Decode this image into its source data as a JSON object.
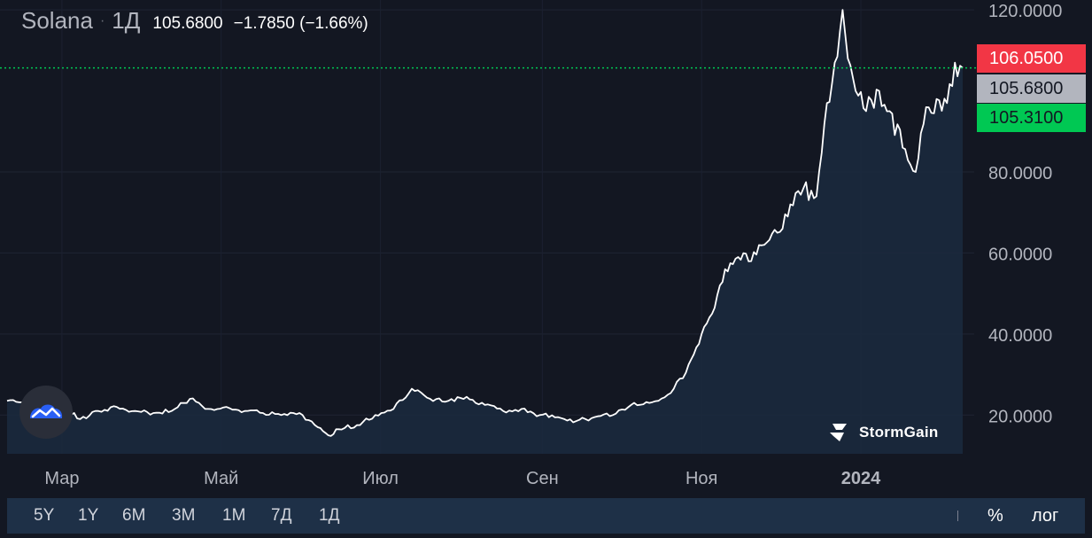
{
  "symbol": {
    "name": "Solana",
    "separator": "·",
    "interval": "1Д",
    "last_price": "105.6800",
    "change": "−1.7850 (−1.66%)"
  },
  "price_labels": {
    "ask": "106.0500",
    "last": "105.6800",
    "bid": "105.3100"
  },
  "brand": {
    "name": "StormGain"
  },
  "range_buttons": [
    "5Y",
    "1Y",
    "6M",
    "3M",
    "1M",
    "7Д",
    "1Д"
  ],
  "scale_buttons": {
    "percent": "%",
    "log": "лог"
  },
  "colors": {
    "background": "#131722",
    "line": "#ffffff",
    "area": "#1b2a3e",
    "ask": "#f23645",
    "bid": "#00c853",
    "last": "#b2b5be",
    "current_price_line": "#00c853",
    "bottom_bar": "#1e3047"
  },
  "chart_data": {
    "type": "area",
    "x_tick_labels": [
      "Мар",
      "Май",
      "Июл",
      "Сен",
      "Ноя",
      "2024"
    ],
    "y_tick_labels": [
      "20.0000",
      "40.0000",
      "60.0000",
      "80.0000",
      "120.0000"
    ],
    "ylim": [
      10,
      122
    ],
    "grid": true,
    "series": [
      {
        "x": [
          "2023-02-08",
          "2023-02-15",
          "2023-02-22",
          "2023-03-01",
          "2023-03-08",
          "2023-03-15",
          "2023-03-22",
          "2023-03-29",
          "2023-04-05",
          "2023-04-12",
          "2023-04-19",
          "2023-04-26",
          "2023-05-03",
          "2023-05-10",
          "2023-05-17",
          "2023-05-24",
          "2023-05-31",
          "2023-06-07",
          "2023-06-11",
          "2023-06-15",
          "2023-06-22",
          "2023-06-29",
          "2023-07-06",
          "2023-07-13",
          "2023-07-20",
          "2023-07-27",
          "2023-08-03",
          "2023-08-10",
          "2023-08-17",
          "2023-08-24",
          "2023-08-31",
          "2023-09-07",
          "2023-09-14",
          "2023-09-21",
          "2023-09-28",
          "2023-10-05",
          "2023-10-12",
          "2023-10-19",
          "2023-10-26",
          "2023-11-01",
          "2023-11-05",
          "2023-11-10",
          "2023-11-15",
          "2023-11-20",
          "2023-11-25",
          "2023-11-30",
          "2023-12-05",
          "2023-12-10",
          "2023-12-15",
          "2023-12-19",
          "2023-12-22",
          "2023-12-25",
          "2023-12-27",
          "2023-12-30",
          "2024-01-03",
          "2024-01-08",
          "2024-01-12",
          "2024-01-17",
          "2024-01-22",
          "2024-01-26",
          "2024-01-30",
          "2024-02-03",
          "2024-02-06",
          "2024-02-09"
        ],
        "y": [
          23.5,
          22.5,
          24.6,
          22.0,
          19.0,
          21.0,
          22.0,
          21.0,
          20.5,
          21.0,
          24.0,
          21.5,
          22.0,
          21.0,
          20.5,
          20.0,
          20.5,
          17.0,
          15.0,
          16.5,
          17.5,
          20.0,
          21.5,
          26.5,
          24.0,
          23.5,
          24.5,
          22.5,
          21.0,
          21.5,
          20.0,
          19.5,
          18.5,
          19.5,
          20.0,
          22.5,
          23.0,
          25.0,
          30.5,
          40.0,
          45.0,
          56.0,
          59.0,
          58.0,
          62.0,
          65.0,
          72.0,
          76.0,
          74.0,
          97.0,
          107.0,
          120.0,
          108.0,
          100.0,
          95.0,
          100.0,
          95.0,
          86.0,
          80.0,
          96.0,
          98.0,
          97.0,
          107.0,
          105.68
        ]
      }
    ]
  }
}
